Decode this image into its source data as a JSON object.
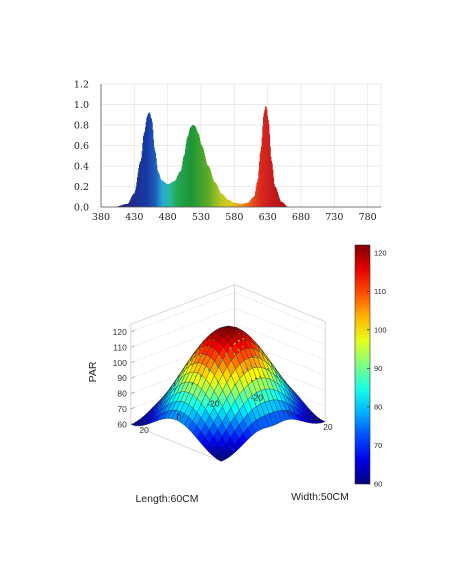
{
  "chart_data": [
    {
      "type": "area",
      "title": "",
      "xlabel": "",
      "ylabel": "",
      "xlim": [
        380,
        800
      ],
      "ylim": [
        0,
        1.2
      ],
      "x_ticks": [
        "380",
        "430",
        "480",
        "530",
        "580",
        "630",
        "680",
        "730",
        "780"
      ],
      "y_ticks": [
        "0.0",
        "0.2",
        "0.4",
        "0.6",
        "0.8",
        "1.0",
        "1.2"
      ],
      "grid": true,
      "fill": "spectral rainbow by wavelength",
      "peaks": [
        {
          "x": 452,
          "y": 0.92
        },
        {
          "x": 518,
          "y": 0.8
        },
        {
          "x": 627,
          "y": 0.98
        }
      ],
      "x": [
        400,
        420,
        430,
        440,
        445,
        450,
        452,
        455,
        460,
        465,
        470,
        480,
        490,
        500,
        505,
        510,
        515,
        518,
        520,
        525,
        530,
        540,
        550,
        560,
        570,
        580,
        590,
        600,
        610,
        615,
        620,
        625,
        627,
        630,
        635,
        640,
        650,
        660
      ],
      "y": [
        0.0,
        0.03,
        0.13,
        0.45,
        0.72,
        0.89,
        0.92,
        0.86,
        0.55,
        0.34,
        0.26,
        0.22,
        0.25,
        0.35,
        0.5,
        0.68,
        0.78,
        0.8,
        0.79,
        0.72,
        0.6,
        0.4,
        0.24,
        0.13,
        0.07,
        0.04,
        0.03,
        0.04,
        0.1,
        0.25,
        0.55,
        0.92,
        0.98,
        0.85,
        0.45,
        0.2,
        0.05,
        0.0
      ]
    },
    {
      "type": "surface",
      "title": "",
      "xlabel": "Length:60CM",
      "ylabel": "Width:50CM",
      "zlabel": "PAR",
      "z_ticks": [
        "60",
        "70",
        "80",
        "90",
        "100",
        "110",
        "120"
      ],
      "length_ticks": [
        "20",
        "0",
        "-20"
      ],
      "width_ticks": [
        "-20",
        "0",
        "20"
      ],
      "zlim": [
        60,
        125
      ],
      "colorbar": {
        "min": 60,
        "max": 122,
        "ticks": [
          "60",
          "70",
          "80",
          "90",
          "100",
          "110",
          "120"
        ],
        "colormap": "jet"
      },
      "surface": {
        "length_range": [
          -30,
          30
        ],
        "width_range": [
          -25,
          25
        ],
        "peak_value": 122,
        "length_edge_value": 76,
        "corner_value": 60
      }
    }
  ]
}
